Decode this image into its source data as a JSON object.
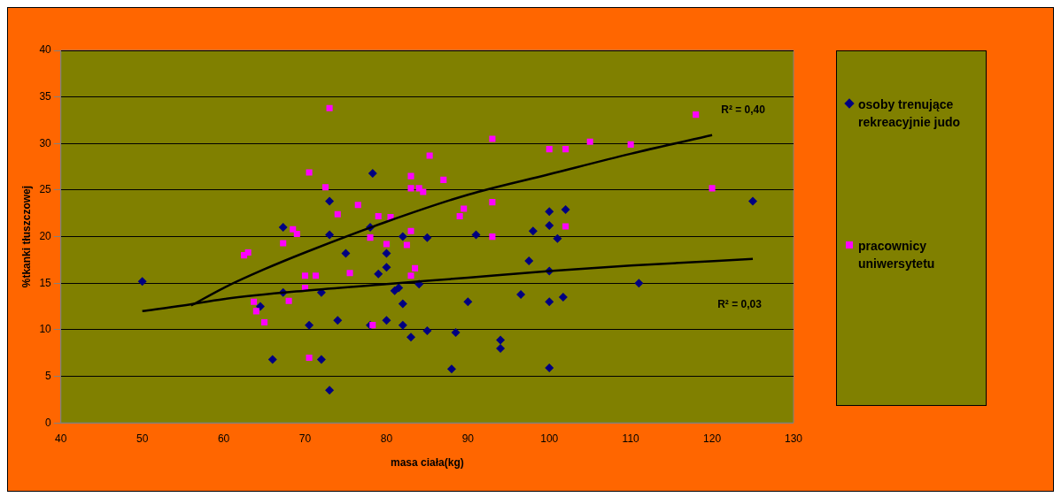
{
  "chart_data": {
    "type": "scatter",
    "xlabel": "masa ciała(kg)",
    "ylabel": "%tkanki tłuszczowej",
    "xlim": [
      40,
      130
    ],
    "xticks": [
      40,
      50,
      60,
      70,
      80,
      90,
      100,
      110,
      120,
      130
    ],
    "ylim": [
      0,
      40
    ],
    "yticks": [
      0,
      5,
      10,
      15,
      20,
      25,
      30,
      35,
      40
    ],
    "grid": "y",
    "legend": "right",
    "series": [
      {
        "name": "osoby trenujące rekreacyjnie judo",
        "color": "#000080",
        "marker": "diamond",
        "x": [
          50,
          64.5,
          66,
          67.3,
          67.3,
          70.5,
          72,
          72,
          73,
          73,
          73,
          74,
          75,
          78,
          78.3,
          78,
          79,
          80,
          80,
          80,
          81,
          81.5,
          82,
          82,
          82,
          83,
          84,
          85,
          85,
          88,
          88.5,
          90,
          91,
          94,
          94,
          96.5,
          97.5,
          98,
          100,
          100,
          100,
          100,
          100,
          101,
          102,
          101.7,
          111,
          125
        ],
        "values": [
          15.2,
          12.5,
          6.8,
          21,
          14,
          10.5,
          14,
          6.8,
          23.8,
          20.2,
          3.5,
          11,
          18.2,
          21,
          26.8,
          10.5,
          16,
          18.2,
          16.7,
          11,
          14.2,
          14.5,
          20,
          12.8,
          10.5,
          9.2,
          14.9,
          19.9,
          9.9,
          5.8,
          9.7,
          13,
          20.2,
          8.9,
          8,
          13.8,
          17.4,
          20.6,
          22.7,
          21.2,
          16.3,
          13,
          5.9,
          19.8,
          22.9,
          13.5,
          15,
          23.8
        ]
      },
      {
        "name": "pracownicy uniwersytetu",
        "color": "#ff00ff",
        "marker": "square",
        "x": [
          62.5,
          63,
          63.7,
          64,
          65,
          67.3,
          70.5,
          68,
          68.5,
          69,
          70,
          70,
          70.5,
          71.3,
          72.5,
          73,
          74,
          75.5,
          76.5,
          78,
          78.3,
          79,
          80,
          80.5,
          82.5,
          83,
          83,
          83,
          83,
          83.5,
          84,
          84.5,
          85.3,
          87,
          89,
          89.5,
          93,
          93,
          93,
          100,
          102,
          102,
          105,
          110,
          118,
          120
        ],
        "values": [
          18,
          18.3,
          13,
          12,
          10.8,
          19.3,
          26.9,
          13.1,
          20.8,
          20.3,
          15.8,
          14.5,
          7,
          15.8,
          25.3,
          33.8,
          22.4,
          16.1,
          23.4,
          19.9,
          10.5,
          22.2,
          19.2,
          22.1,
          19.1,
          26.5,
          25.2,
          20.6,
          15.8,
          16.6,
          25.2,
          24.8,
          28.7,
          26.1,
          22.2,
          23,
          30.5,
          23.7,
          20,
          29.4,
          29.4,
          21.1,
          30.2,
          29.9,
          33.1,
          25.2
        ]
      },
      {
        "type": "line",
        "color": "#000000",
        "marker": "none",
        "x": [
          56,
          60,
          65,
          70,
          80,
          90,
          100,
          110,
          120
        ],
        "values": [
          12.6,
          14.5,
          16.5,
          18.3,
          21.6,
          24.5,
          26.7,
          28.9,
          30.9
        ]
      },
      {
        "type": "line",
        "color": "#000000",
        "marker": "none",
        "x": [
          50,
          55,
          60,
          70,
          80,
          90,
          100,
          110,
          125
        ],
        "values": [
          12,
          12.6,
          13.3,
          14.2,
          14.9,
          15.6,
          16.3,
          16.9,
          17.6
        ]
      }
    ],
    "annotations": [
      "R² = 0,40",
      "R² = 0,03"
    ]
  }
}
